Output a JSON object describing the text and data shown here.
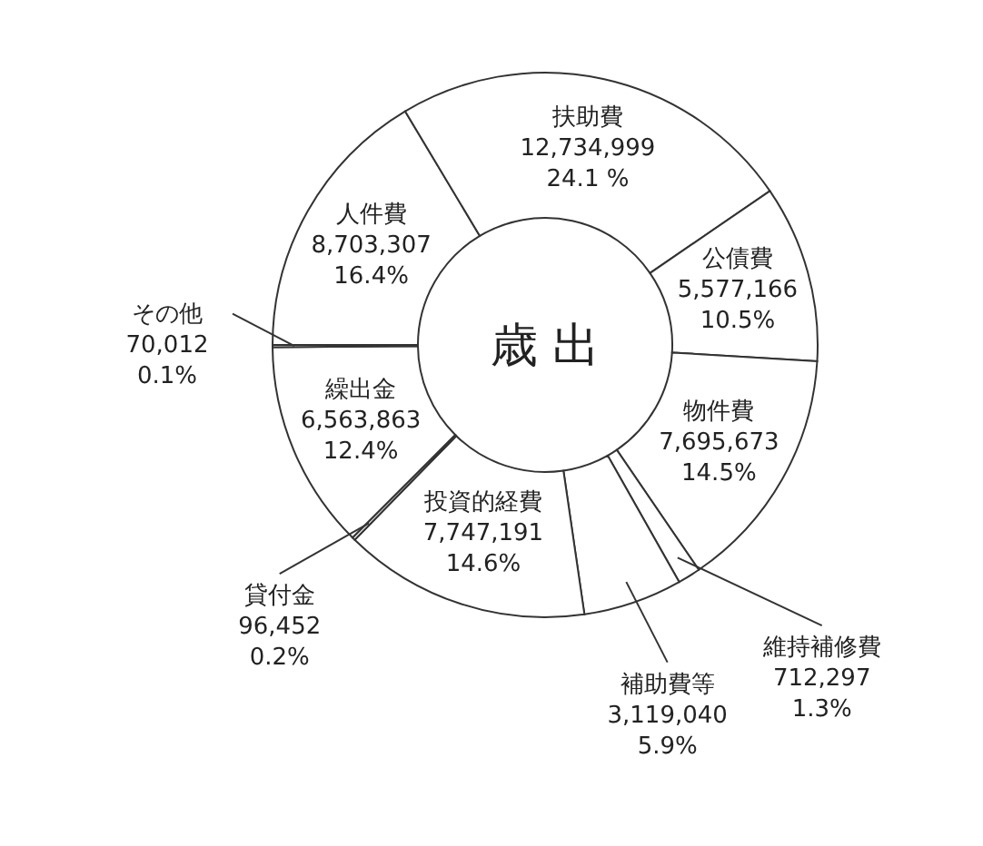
{
  "chart_data": {
    "type": "donut",
    "title": "歳 出",
    "categories": [
      "人件費",
      "扶助費",
      "公債費",
      "物件費",
      "維持補修費",
      "補助費等",
      "投資的経費",
      "貸付金",
      "繰出金",
      "その他"
    ],
    "values": [
      8703307,
      12734999,
      5577166,
      7695673,
      712297,
      3119040,
      7747191,
      96452,
      6563863,
      70012
    ],
    "value_labels": [
      "8,703,307",
      "12,734,999",
      "5,577,166",
      "7,695,673",
      "712,297",
      "3,119,040",
      "7,747,191",
      "96,452",
      "6,563,863",
      "70,012"
    ],
    "colors": [
      "#ffffff",
      "#ffffff",
      "#ffffff",
      "#ffffff",
      "#ffffff",
      "#ffffff",
      "#ffffff",
      "#ffffff",
      "#ffffff",
      "#ffffff"
    ],
    "annotations": [
      {
        "text": "16.4%",
        "x": "人件費"
      },
      {
        "text": "24.1 %",
        "x": "扶助費"
      },
      {
        "text": "10.5%",
        "x": "公債費"
      },
      {
        "text": "14.5%",
        "x": "物件費"
      },
      {
        "text": "1.3%",
        "x": "維持補修費"
      },
      {
        "text": "5.9%",
        "x": "補助費等"
      },
      {
        "text": "14.6%",
        "x": "投資的経費"
      },
      {
        "text": "0.2%",
        "x": "貸付金"
      },
      {
        "text": "12.4%",
        "x": "繰出金"
      },
      {
        "text": "0.1%",
        "x": "その他"
      }
    ]
  }
}
